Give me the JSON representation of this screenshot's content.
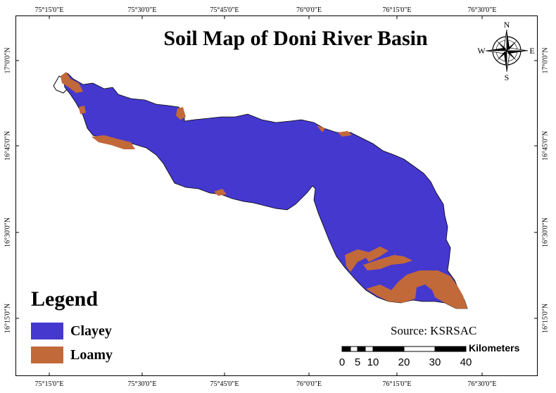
{
  "map": {
    "title": "Soil Map of Doni River Basin",
    "source": "Source: KSRSAC",
    "colors": {
      "clayey": "#4538cf",
      "loamy": "#c2693a"
    }
  },
  "graticule": {
    "top": [
      "75°15'0\"E",
      "75°30'0\"E",
      "75°45'0\"E",
      "76°0'0\"E",
      "76°15'0\"E",
      "76°30'0\"E"
    ],
    "bottom": [
      "75°15'0\"E",
      "75°30'0\"E",
      "75°45'0\"E",
      "76°0'0\"E",
      "76°15'0\"E",
      "76°30'0\"E"
    ],
    "left": [
      "17°0'0\"N",
      "16°45'0\"N",
      "16°30'0\"N",
      "16°15'0\"N"
    ],
    "right": [
      "17°0'0\"N",
      "16°45'0\"N",
      "16°30'0\"N",
      "16°15'0\"N"
    ]
  },
  "legend": {
    "title": "Legend",
    "items": [
      {
        "label": "Clayey",
        "color": "#4538cf"
      },
      {
        "label": "Loamy",
        "color": "#c2693a"
      }
    ]
  },
  "north_arrow": {
    "n": "N",
    "s": "S",
    "e": "E",
    "w": "W"
  },
  "scale_bar": {
    "unit": "Kilometers",
    "labels": [
      "0",
      "5",
      "10",
      "20",
      "30",
      "40"
    ]
  }
}
